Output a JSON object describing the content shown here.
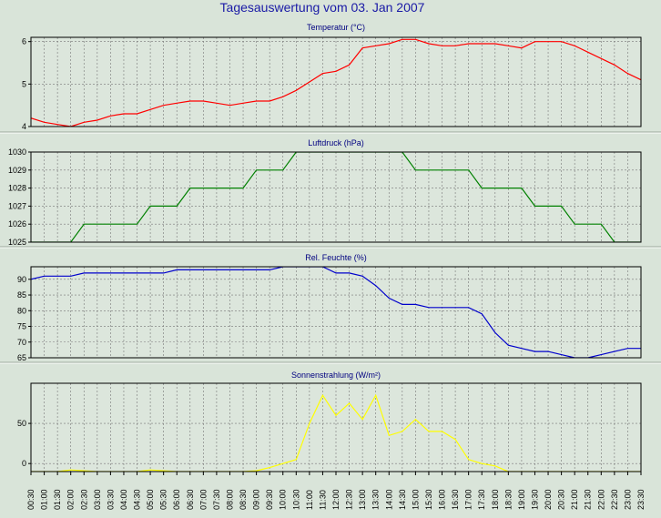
{
  "title": "Tagesauswertung vom 03. Jan 2007",
  "x_ticks": [
    "00:30",
    "01:00",
    "01:30",
    "02:00",
    "02:30",
    "03:00",
    "03:30",
    "04:00",
    "04:30",
    "05:00",
    "05:30",
    "06:00",
    "06:30",
    "07:00",
    "07:30",
    "08:00",
    "08:30",
    "09:00",
    "09:30",
    "10:00",
    "10:30",
    "11:00",
    "11:30",
    "12:00",
    "12:30",
    "13:00",
    "13:30",
    "14:00",
    "14:30",
    "15:00",
    "15:30",
    "16:00",
    "16:30",
    "17:00",
    "17:30",
    "18:00",
    "18:30",
    "19:00",
    "19:30",
    "20:00",
    "20:30",
    "21:00",
    "21:30",
    "22:00",
    "22:30",
    "23:00",
    "23:30"
  ],
  "chart_data": [
    {
      "type": "line",
      "title": "Temperatur (°C)",
      "color": "#ff0000",
      "ylim": [
        4,
        6.1
      ],
      "yticks": [
        4,
        5,
        6
      ],
      "grid": true,
      "x": [
        "00:30",
        "01:00",
        "01:30",
        "02:00",
        "02:30",
        "03:00",
        "03:30",
        "04:00",
        "04:30",
        "05:00",
        "05:30",
        "06:00",
        "06:30",
        "07:00",
        "07:30",
        "08:00",
        "08:30",
        "09:00",
        "09:30",
        "10:00",
        "10:30",
        "11:00",
        "11:30",
        "12:00",
        "12:30",
        "13:00",
        "13:30",
        "14:00",
        "14:30",
        "15:00",
        "15:30",
        "16:00",
        "16:30",
        "17:00",
        "17:30",
        "18:00",
        "18:30",
        "19:00",
        "19:30",
        "20:00",
        "20:30",
        "21:00",
        "21:30",
        "22:00",
        "22:30",
        "23:00",
        "23:30"
      ],
      "values": [
        4.2,
        4.1,
        4.05,
        4.0,
        4.1,
        4.15,
        4.25,
        4.3,
        4.3,
        4.4,
        4.5,
        4.55,
        4.6,
        4.6,
        4.55,
        4.5,
        4.55,
        4.6,
        4.6,
        4.7,
        4.85,
        5.05,
        5.25,
        5.3,
        5.45,
        5.85,
        5.9,
        5.95,
        6.05,
        6.05,
        5.95,
        5.9,
        5.9,
        5.95,
        5.95,
        5.95,
        5.9,
        5.85,
        6.0,
        6.0,
        6.0,
        5.9,
        5.75,
        5.6,
        5.45,
        5.25,
        5.1
      ]
    },
    {
      "type": "line",
      "title": "Luftdruck (hPa)",
      "color": "#008000",
      "ylim": [
        1025,
        1030
      ],
      "yticks": [
        1025,
        1026,
        1027,
        1028,
        1029,
        1030
      ],
      "grid": true,
      "x": [
        "00:30",
        "01:00",
        "01:30",
        "02:00",
        "02:30",
        "03:00",
        "03:30",
        "04:00",
        "04:30",
        "05:00",
        "05:30",
        "06:00",
        "06:30",
        "07:00",
        "07:30",
        "08:00",
        "08:30",
        "09:00",
        "09:30",
        "10:00",
        "10:30",
        "11:00",
        "11:30",
        "12:00",
        "12:30",
        "13:00",
        "13:30",
        "14:00",
        "14:30",
        "15:00",
        "15:30",
        "16:00",
        "16:30",
        "17:00",
        "17:30",
        "18:00",
        "18:30",
        "19:00",
        "19:30",
        "20:00",
        "20:30",
        "21:00",
        "21:30",
        "22:00",
        "22:30",
        "23:00",
        "23:30"
      ],
      "values": [
        1025,
        1025,
        1025,
        1025,
        1026,
        1026,
        1026,
        1026,
        1026,
        1027,
        1027,
        1027,
        1028,
        1028,
        1028,
        1028,
        1028,
        1029,
        1029,
        1029,
        1030,
        1030,
        1030,
        1030,
        1030,
        1030,
        1030,
        1030,
        1030,
        1029,
        1029,
        1029,
        1029,
        1029,
        1028,
        1028,
        1028,
        1028,
        1027,
        1027,
        1027,
        1026,
        1026,
        1026,
        1025,
        1025,
        1025
      ]
    },
    {
      "type": "line",
      "title": "Rel. Feuchte (%)",
      "color": "#0000cc",
      "ylim": [
        65,
        94
      ],
      "yticks": [
        65,
        70,
        75,
        80,
        85,
        90
      ],
      "grid": true,
      "x": [
        "00:30",
        "01:00",
        "01:30",
        "02:00",
        "02:30",
        "03:00",
        "03:30",
        "04:00",
        "04:30",
        "05:00",
        "05:30",
        "06:00",
        "06:30",
        "07:00",
        "07:30",
        "08:00",
        "08:30",
        "09:00",
        "09:30",
        "10:00",
        "10:30",
        "11:00",
        "11:30",
        "12:00",
        "12:30",
        "13:00",
        "13:30",
        "14:00",
        "14:30",
        "15:00",
        "15:30",
        "16:00",
        "16:30",
        "17:00",
        "17:30",
        "18:00",
        "18:30",
        "19:00",
        "19:30",
        "20:00",
        "20:30",
        "21:00",
        "21:30",
        "22:00",
        "22:30",
        "23:00",
        "23:30"
      ],
      "values": [
        90,
        91,
        91,
        91,
        92,
        92,
        92,
        92,
        92,
        92,
        92,
        93,
        93,
        93,
        93,
        93,
        93,
        93,
        93,
        94,
        94,
        94,
        94,
        92,
        92,
        91,
        88,
        84,
        82,
        82,
        81,
        81,
        81,
        81,
        79,
        73,
        69,
        68,
        67,
        67,
        66,
        65,
        65,
        66,
        67,
        68,
        68
      ]
    },
    {
      "type": "line",
      "title": "Sonnenstrahlung (W/m²)",
      "color": "#ffff00",
      "ylim": [
        -10,
        100
      ],
      "yticks": [
        0,
        50
      ],
      "grid": true,
      "x": [
        "00:30",
        "01:00",
        "01:30",
        "02:00",
        "02:30",
        "03:00",
        "03:30",
        "04:00",
        "04:30",
        "05:00",
        "05:30",
        "06:00",
        "06:30",
        "07:00",
        "07:30",
        "08:00",
        "08:30",
        "09:00",
        "09:30",
        "10:00",
        "10:30",
        "11:00",
        "11:30",
        "12:00",
        "12:30",
        "13:00",
        "13:30",
        "14:00",
        "14:30",
        "15:00",
        "15:30",
        "16:00",
        "16:30",
        "17:00",
        "17:30",
        "18:00",
        "18:30",
        "19:00",
        "19:30",
        "20:00",
        "20:30",
        "21:00",
        "21:30",
        "22:00",
        "22:30",
        "23:00",
        "23:30"
      ],
      "values": [
        -10,
        -10,
        -10,
        -8,
        -9,
        -10,
        -10,
        -10,
        -10,
        -8,
        -9,
        -10,
        -10,
        -10,
        -10,
        -10,
        -10,
        -9,
        -5,
        0,
        5,
        50,
        85,
        60,
        75,
        55,
        85,
        35,
        40,
        55,
        40,
        40,
        30,
        5,
        0,
        -3,
        -10,
        -10,
        -10,
        -10,
        -10,
        -10,
        -10,
        -10,
        -10,
        -10,
        -10
      ]
    }
  ]
}
